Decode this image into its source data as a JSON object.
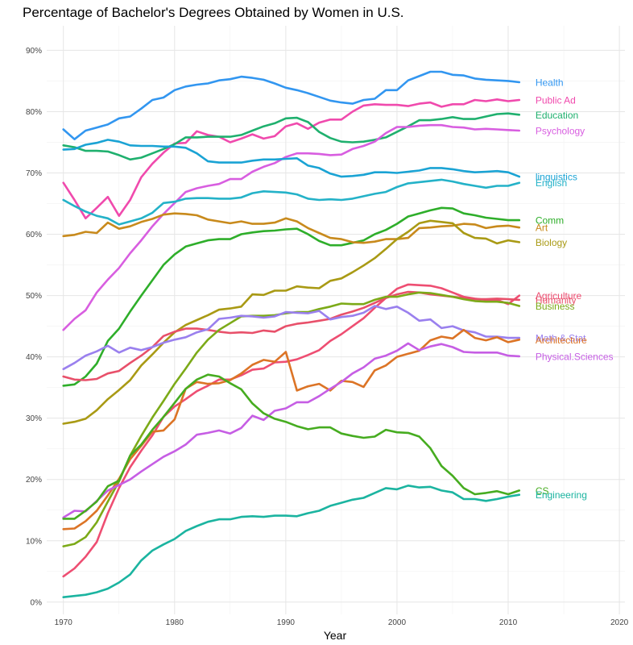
{
  "chart_data": {
    "type": "line",
    "title": "Percentage of Bachelor's Degrees Obtained by Women in U.S.",
    "xlabel": "Year",
    "ylabel": "",
    "xlim": [
      1968.5,
      2020.5
    ],
    "ylim": [
      -2,
      94
    ],
    "x_ticks": [
      "1970",
      "1980",
      "1990",
      "2000",
      "2010",
      "2020"
    ],
    "y_ticks": [
      "0%",
      "10%",
      "20%",
      "30%",
      "40%",
      "50%",
      "60%",
      "70%",
      "80%",
      "90%"
    ],
    "grid": true,
    "legend": "inline labels at right end of lines",
    "x": [
      1970,
      1971,
      1972,
      1973,
      1974,
      1975,
      1976,
      1977,
      1978,
      1979,
      1980,
      1981,
      1982,
      1983,
      1984,
      1985,
      1986,
      1987,
      1988,
      1989,
      1990,
      1991,
      1992,
      1993,
      1994,
      1995,
      1996,
      1997,
      1998,
      1999,
      2000,
      2001,
      2002,
      2003,
      2004,
      2005,
      2006,
      2007,
      2008,
      2009,
      2010,
      2011
    ],
    "series": [
      {
        "name": "Health",
        "color": "#3296f0",
        "values": [
          77.1,
          75.5,
          76.9,
          77.4,
          77.9,
          78.9,
          79.2,
          80.5,
          81.9,
          82.3,
          83.5,
          84.1,
          84.4,
          84.6,
          85.1,
          85.3,
          85.7,
          85.5,
          85.2,
          84.6,
          83.9,
          83.5,
          83.0,
          82.4,
          81.8,
          81.5,
          81.3,
          81.9,
          82.1,
          83.5,
          83.5,
          85.1,
          85.8,
          86.5,
          86.5,
          86.0,
          85.9,
          85.4,
          85.2,
          85.1,
          85.0,
          84.8
        ]
      },
      {
        "name": "Public Ad",
        "color": "#f04aad",
        "values": [
          68.4,
          65.6,
          62.6,
          64.3,
          66.1,
          63.0,
          65.6,
          69.3,
          71.5,
          73.3,
          74.8,
          74.9,
          76.8,
          76.2,
          75.9,
          75.0,
          75.6,
          76.3,
          75.6,
          76.0,
          77.6,
          78.1,
          77.2,
          78.2,
          78.7,
          78.7,
          80.0,
          81.0,
          81.2,
          81.1,
          81.1,
          80.9,
          81.3,
          81.5,
          80.8,
          81.2,
          81.2,
          81.9,
          81.7,
          82.0,
          81.7,
          81.9
        ]
      },
      {
        "name": "Education",
        "color": "#1fb06e",
        "values": [
          74.5,
          74.2,
          73.6,
          73.6,
          73.5,
          72.9,
          72.2,
          72.5,
          73.2,
          73.9,
          74.7,
          75.8,
          75.8,
          75.9,
          75.9,
          75.9,
          76.2,
          76.9,
          77.6,
          78.1,
          78.9,
          79.0,
          78.3,
          76.7,
          75.7,
          75.1,
          75.0,
          75.1,
          75.4,
          75.8,
          76.7,
          77.6,
          78.6,
          78.6,
          78.8,
          79.1,
          78.8,
          78.8,
          79.2,
          79.6,
          79.7,
          79.5
        ]
      },
      {
        "name": "Psychology",
        "color": "#d85ee0",
        "values": [
          44.4,
          46.2,
          47.6,
          50.5,
          52.6,
          54.5,
          56.9,
          59.0,
          61.3,
          63.3,
          65.1,
          66.9,
          67.5,
          67.9,
          68.2,
          69.0,
          69.0,
          70.2,
          71.0,
          71.6,
          72.6,
          73.2,
          73.2,
          73.1,
          72.9,
          73.0,
          73.9,
          74.4,
          75.1,
          76.5,
          77.5,
          77.5,
          77.7,
          77.8,
          77.8,
          77.5,
          77.4,
          77.1,
          77.2,
          77.1,
          77.0,
          76.9
        ]
      },
      {
        "name": "linguistics",
        "color": "#1aa3d4",
        "values": [
          73.8,
          73.9,
          74.6,
          74.9,
          75.4,
          75.1,
          74.5,
          74.4,
          74.4,
          74.3,
          74.3,
          74.1,
          73.2,
          71.9,
          71.7,
          71.7,
          71.7,
          72.0,
          72.2,
          72.2,
          72.3,
          72.4,
          71.2,
          70.8,
          69.9,
          69.4,
          69.5,
          69.7,
          70.1,
          70.1,
          70.0,
          70.2,
          70.4,
          70.8,
          70.8,
          70.6,
          70.3,
          70.1,
          70.2,
          70.3,
          70.1,
          69.4
        ]
      },
      {
        "name": "English",
        "color": "#24b2c8",
        "values": [
          65.6,
          64.6,
          63.7,
          63.0,
          62.6,
          61.6,
          62.1,
          62.6,
          63.5,
          65.1,
          65.3,
          65.8,
          65.9,
          65.9,
          65.8,
          65.8,
          66.0,
          66.7,
          67.0,
          66.9,
          66.8,
          66.5,
          65.8,
          65.6,
          65.7,
          65.6,
          65.8,
          66.2,
          66.6,
          66.9,
          67.7,
          68.3,
          68.5,
          68.7,
          68.9,
          68.6,
          68.2,
          67.9,
          67.6,
          67.9,
          67.9,
          68.4
        ]
      },
      {
        "name": "Comm",
        "color": "#2eae2a",
        "values": [
          35.3,
          35.5,
          36.8,
          38.9,
          42.6,
          44.6,
          47.4,
          50.0,
          52.5,
          55.0,
          56.7,
          58.0,
          58.5,
          59.0,
          59.2,
          59.2,
          60.0,
          60.3,
          60.5,
          60.6,
          60.8,
          60.9,
          60.0,
          58.9,
          58.2,
          58.2,
          58.6,
          59.0,
          60.0,
          60.7,
          61.7,
          62.9,
          63.4,
          63.9,
          64.3,
          64.2,
          63.4,
          63.1,
          62.7,
          62.5,
          62.3,
          62.3
        ]
      },
      {
        "name": "Art",
        "color": "#c88a1c",
        "values": [
          59.7,
          59.9,
          60.4,
          60.2,
          61.9,
          60.9,
          61.3,
          62.0,
          62.5,
          63.2,
          63.4,
          63.3,
          63.1,
          62.4,
          62.1,
          61.8,
          62.1,
          61.7,
          61.7,
          61.9,
          62.6,
          62.1,
          61.0,
          60.2,
          59.4,
          59.2,
          58.7,
          58.6,
          58.8,
          59.2,
          59.2,
          59.4,
          61.0,
          61.1,
          61.3,
          61.4,
          61.7,
          61.6,
          61.0,
          61.3,
          61.4,
          61.1
        ]
      },
      {
        "name": "Biology",
        "color": "#a99a14",
        "values": [
          29.1,
          29.4,
          29.9,
          31.3,
          33.1,
          34.6,
          36.2,
          38.6,
          40.4,
          42.3,
          44.0,
          45.2,
          46.0,
          46.8,
          47.7,
          47.9,
          48.2,
          50.2,
          50.1,
          50.8,
          50.8,
          51.5,
          51.3,
          51.2,
          52.4,
          52.8,
          53.8,
          54.9,
          56.1,
          57.6,
          59.2,
          60.4,
          61.8,
          62.2,
          62.0,
          61.8,
          60.2,
          59.4,
          59.3,
          58.5,
          59.0,
          58.7
        ]
      },
      {
        "name": "Agriculture",
        "color": "#ee4e72",
        "values": [
          4.2,
          5.5,
          7.4,
          9.8,
          14.5,
          18.6,
          22.0,
          24.7,
          27.2,
          30.2,
          31.9,
          33.1,
          34.4,
          35.3,
          36.3,
          36.3,
          37.0,
          37.9,
          38.1,
          39.1,
          39.2,
          39.6,
          40.3,
          41.1,
          42.6,
          43.7,
          45.0,
          46.3,
          48.0,
          49.6,
          51.1,
          51.8,
          51.7,
          51.6,
          51.2,
          50.5,
          49.8,
          49.5,
          49.3,
          49.3,
          48.6,
          50.0
        ]
      },
      {
        "name": "Humanity",
        "color": "#e8506a",
        "values": [
          36.8,
          36.3,
          36.2,
          36.4,
          37.3,
          37.7,
          39.0,
          40.2,
          41.6,
          43.4,
          44.1,
          44.6,
          44.6,
          44.4,
          44.1,
          43.9,
          44.0,
          43.9,
          44.3,
          44.1,
          45.0,
          45.4,
          45.6,
          45.9,
          46.2,
          46.9,
          47.4,
          48.0,
          48.8,
          49.6,
          50.2,
          50.6,
          50.5,
          50.2,
          50.0,
          49.8,
          49.6,
          49.4,
          49.4,
          49.5,
          49.4,
          49.3
        ]
      },
      {
        "name": "Business",
        "color": "#7caa18",
        "values": [
          9.1,
          9.5,
          10.6,
          13.0,
          16.4,
          19.7,
          23.9,
          27.1,
          30.1,
          32.8,
          35.6,
          38.1,
          40.7,
          42.8,
          44.4,
          45.5,
          46.6,
          46.7,
          46.7,
          46.8,
          47.1,
          47.3,
          47.3,
          47.8,
          48.2,
          48.7,
          48.6,
          48.6,
          49.3,
          49.8,
          49.8,
          50.2,
          50.5,
          50.4,
          50.1,
          49.8,
          49.4,
          49.1,
          49.0,
          49.0,
          48.8,
          48.3
        ]
      },
      {
        "name": "Math & Stat",
        "color": "#9a80ee",
        "values": [
          38.0,
          39.0,
          40.2,
          40.9,
          41.8,
          40.7,
          41.5,
          41.1,
          41.6,
          42.3,
          42.8,
          43.2,
          44.0,
          44.5,
          46.2,
          46.4,
          46.7,
          46.6,
          46.4,
          46.6,
          47.3,
          47.2,
          47.1,
          47.5,
          46.1,
          46.5,
          46.7,
          47.2,
          48.3,
          47.8,
          48.2,
          47.2,
          45.9,
          46.1,
          44.7,
          45.0,
          44.3,
          44.0,
          43.3,
          43.3,
          43.1,
          43.1
        ]
      },
      {
        "name": "Architecture",
        "color": "#dc7426",
        "values": [
          11.9,
          12.0,
          13.2,
          14.9,
          17.4,
          20.1,
          23.3,
          25.5,
          27.8,
          28.0,
          29.8,
          34.8,
          35.9,
          35.6,
          35.7,
          36.2,
          37.3,
          38.7,
          39.5,
          39.2,
          40.8,
          34.5,
          35.2,
          35.6,
          34.5,
          36.1,
          35.9,
          35.1,
          37.8,
          38.6,
          40.0,
          40.5,
          41.0,
          42.7,
          43.3,
          43.0,
          44.4,
          43.1,
          42.7,
          43.2,
          42.4,
          42.8
        ]
      },
      {
        "name": "Physical.Sciences",
        "color": "#c65ee4",
        "values": [
          13.8,
          14.9,
          14.8,
          16.5,
          18.2,
          19.1,
          20.0,
          21.3,
          22.5,
          23.7,
          24.6,
          25.7,
          27.3,
          27.6,
          28.0,
          27.5,
          28.4,
          30.4,
          29.7,
          31.2,
          31.6,
          32.6,
          32.6,
          33.6,
          34.8,
          35.9,
          37.3,
          38.3,
          39.7,
          40.2,
          41.0,
          42.2,
          41.1,
          41.7,
          42.1,
          41.6,
          40.8,
          40.7,
          40.7,
          40.7,
          40.2,
          40.1
        ]
      },
      {
        "name": "CS",
        "color": "#46ac20",
        "values": [
          13.6,
          13.6,
          14.9,
          16.4,
          18.9,
          19.8,
          23.9,
          25.7,
          28.1,
          30.2,
          32.5,
          34.8,
          36.3,
          37.1,
          36.8,
          35.7,
          34.7,
          32.4,
          30.8,
          29.9,
          29.4,
          28.7,
          28.2,
          28.5,
          28.5,
          27.5,
          27.1,
          26.8,
          27.0,
          28.1,
          27.7,
          27.6,
          27.0,
          25.1,
          22.2,
          20.6,
          18.6,
          17.6,
          17.8,
          18.1,
          17.6,
          18.2
        ]
      },
      {
        "name": "Engineering",
        "color": "#1bb4a0",
        "values": [
          0.8,
          1.0,
          1.2,
          1.6,
          2.2,
          3.2,
          4.5,
          6.8,
          8.4,
          9.4,
          10.3,
          11.6,
          12.4,
          13.1,
          13.5,
          13.5,
          13.9,
          14.0,
          13.9,
          14.1,
          14.1,
          14.0,
          14.5,
          14.9,
          15.7,
          16.2,
          16.7,
          17.0,
          17.8,
          18.6,
          18.4,
          19.0,
          18.7,
          18.8,
          18.2,
          17.9,
          16.8,
          16.8,
          16.5,
          16.8,
          17.2,
          17.5
        ]
      }
    ]
  }
}
